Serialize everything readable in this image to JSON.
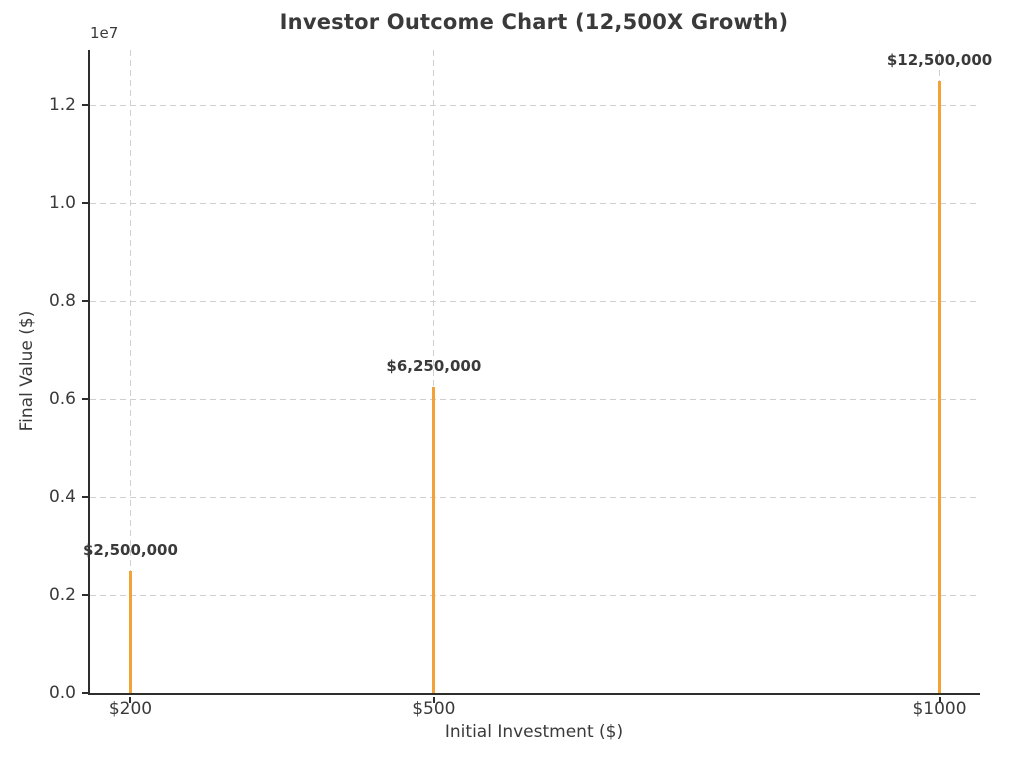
{
  "chart_data": {
    "type": "bar",
    "title": "Investor Outcome Chart (12,500X Growth)",
    "xlabel": "Initial Investment ($)",
    "ylabel": "Final Value ($)",
    "y_offset_text": "1e7",
    "categories": [
      "$200",
      "$500",
      "$1000"
    ],
    "x_values": [
      200,
      500,
      1000
    ],
    "values": [
      2500000,
      6250000,
      12500000
    ],
    "bar_labels": [
      "$2,500,000",
      "$6,250,000",
      "$12,500,000"
    ],
    "xlim": [
      160,
      1040
    ],
    "ylim": [
      0,
      13125000
    ],
    "yticks": [
      0,
      2000000,
      4000000,
      6000000,
      8000000,
      10000000,
      12000000
    ],
    "ytick_labels": [
      "0.0",
      "0.2",
      "0.4",
      "0.6",
      "0.8",
      "1.0",
      "1.2"
    ],
    "grid": true,
    "legend": false,
    "colors": {
      "bar": "#F2A237",
      "text": "#3A3A3A",
      "grid": "#CFCFCF",
      "spine": "#2E2E2E",
      "background": "#FFFFFF"
    }
  }
}
